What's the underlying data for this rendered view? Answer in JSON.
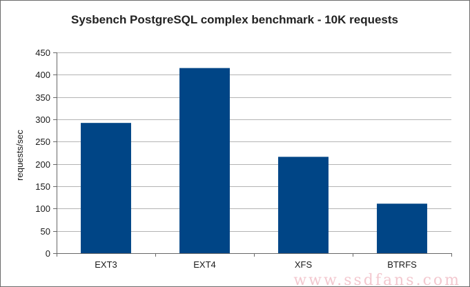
{
  "chart_data": {
    "type": "bar",
    "title": "Sysbench PostgreSQL complex benchmark - 10K requests",
    "xlabel": "",
    "ylabel": "requests/sec",
    "categories": [
      "EXT3",
      "EXT4",
      "XFS",
      "BTRFS"
    ],
    "values": [
      292,
      415,
      216,
      111
    ],
    "ylim": [
      0,
      450
    ],
    "yticks": [
      0,
      50,
      100,
      150,
      200,
      250,
      300,
      350,
      400,
      450
    ],
    "grid": true,
    "legend": "none",
    "bar_color": "#004586",
    "grid_color": "#b3b3b3"
  },
  "watermark": "www.ssdfans.com"
}
